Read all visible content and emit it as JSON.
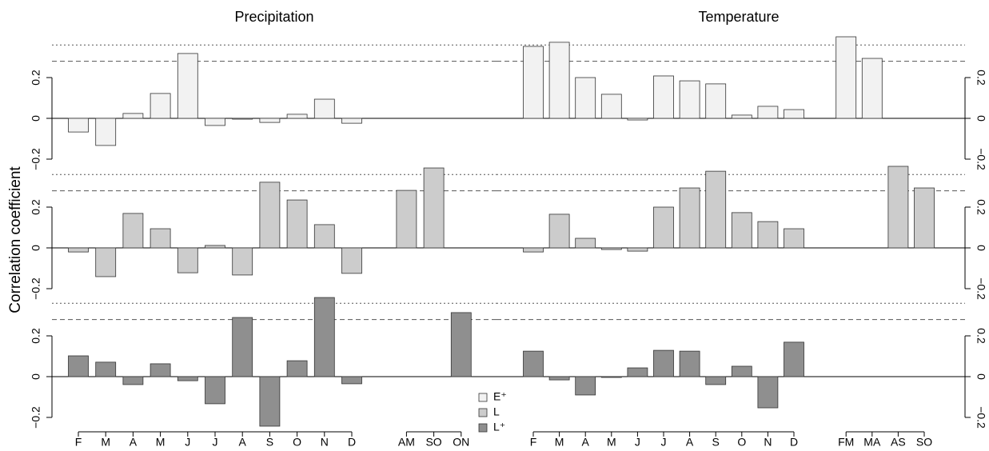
{
  "chart_data": [
    {
      "type": "bar",
      "title": "Precipitation",
      "ylabel": "Correlation coefficient",
      "series": [
        {
          "name": "E⁺",
          "color": "#f2f2f2",
          "values": [
            -0.067,
            -0.133,
            0.024,
            0.122,
            0.318,
            -0.035,
            -0.004,
            -0.02,
            0.02,
            0.094,
            -0.024,
            null,
            null,
            null,
            null
          ]
        }
      ],
      "ylim": [
        -0.25,
        0.4
      ],
      "yticks": [
        {
          "value": -0.2,
          "label": "−0.2"
        },
        0,
        0.2
      ],
      "hlines": [
        {
          "value": 0.28,
          "style": "dashed"
        },
        {
          "value": 0.36,
          "style": "dotted"
        }
      ]
    },
    {
      "type": "bar",
      "title": "Temperature",
      "series": [
        {
          "color": "#f2f2f2",
          "values": [
            0.353,
            0.373,
            0.2,
            0.118,
            -0.008,
            0.208,
            0.184,
            0.169,
            0.016,
            0.059,
            0.043,
            null,
            0.4,
            0.294,
            null,
            null
          ]
        }
      ],
      "ylim": [
        -0.25,
        0.4
      ],
      "yticks": [
        {
          "value": -0.2,
          "label": "−0.2"
        },
        0,
        0.2
      ],
      "hlines": [
        {
          "value": 0.28,
          "style": "dashed"
        },
        {
          "value": 0.36,
          "style": "dotted"
        }
      ]
    },
    {
      "type": "bar",
      "series": [
        {
          "name": "L",
          "color": "#cccccc",
          "values": [
            -0.02,
            -0.141,
            0.169,
            0.094,
            -0.122,
            0.012,
            -0.133,
            0.322,
            0.235,
            0.114,
            -0.125,
            null,
            0.282,
            0.392,
            null
          ]
        }
      ],
      "ylim": [
        -0.25,
        0.4
      ],
      "yticks": [
        {
          "value": -0.2,
          "label": "−0.2"
        },
        0,
        0.2
      ],
      "hlines": [
        {
          "value": 0.28,
          "style": "dashed"
        },
        {
          "value": 0.36,
          "style": "dotted"
        }
      ]
    },
    {
      "type": "bar",
      "series": [
        {
          "color": "#cccccc",
          "values": [
            -0.02,
            0.165,
            0.047,
            -0.008,
            -0.016,
            0.2,
            0.294,
            0.376,
            0.173,
            0.129,
            0.094,
            null,
            null,
            null,
            0.4,
            0.294
          ]
        }
      ],
      "ylim": [
        -0.25,
        0.4
      ],
      "yticks": [
        {
          "value": -0.2,
          "label": "−0.2"
        },
        0,
        0.2
      ],
      "hlines": [
        {
          "value": 0.28,
          "style": "dashed"
        },
        {
          "value": 0.36,
          "style": "dotted"
        }
      ]
    },
    {
      "type": "bar",
      "categories": [
        "F",
        "M",
        "A",
        "M",
        "J",
        "J",
        "A",
        "S",
        "O",
        "N",
        "D",
        null,
        "AM",
        "SO",
        "ON"
      ],
      "series": [
        {
          "name": "L⁺",
          "color": "#8f8f8f",
          "values": [
            0.102,
            0.071,
            -0.039,
            0.063,
            -0.02,
            -0.133,
            0.29,
            -0.243,
            0.078,
            0.388,
            -0.035,
            null,
            null,
            null,
            0.314
          ]
        }
      ],
      "ylim": [
        -0.25,
        0.4
      ],
      "yticks": [
        {
          "value": -0.2,
          "label": "−0.2"
        },
        0,
        0.2
      ],
      "hlines": [
        {
          "value": 0.28,
          "style": "dashed"
        },
        {
          "value": 0.36,
          "style": "dotted"
        }
      ]
    },
    {
      "type": "bar",
      "categories": [
        "F",
        "M",
        "A",
        "M",
        "J",
        "J",
        "A",
        "S",
        "O",
        "N",
        "D",
        null,
        "FM",
        "MA",
        "AS",
        "SO"
      ],
      "series": [
        {
          "color": "#8f8f8f",
          "values": [
            0.125,
            -0.016,
            -0.09,
            -0.004,
            0.043,
            0.129,
            0.125,
            -0.039,
            0.051,
            -0.153,
            0.169,
            null,
            null,
            null,
            null,
            null
          ]
        }
      ],
      "ylim": [
        -0.25,
        0.4
      ],
      "yticks": [
        {
          "value": -0.2,
          "label": "−0.2"
        },
        0,
        0.2
      ],
      "hlines": [
        {
          "value": 0.28,
          "style": "dashed"
        },
        {
          "value": 0.36,
          "style": "dotted"
        }
      ]
    }
  ]
}
